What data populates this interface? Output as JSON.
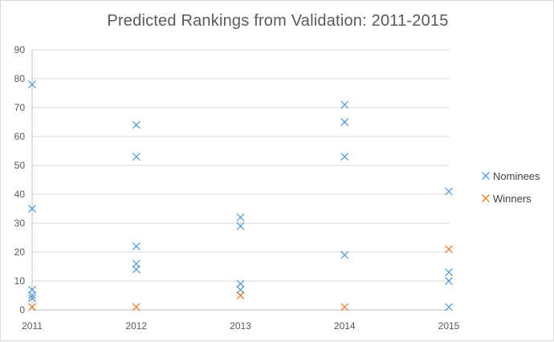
{
  "chart_data": {
    "type": "scatter",
    "title": "Predicted Rankings from Validation: 2011-2015",
    "xlabel": "",
    "ylabel": "",
    "x_ticks": [
      "2011",
      "2012",
      "2013",
      "2014",
      "2015"
    ],
    "y_ticks": [
      "0",
      "10",
      "20",
      "30",
      "40",
      "50",
      "60",
      "70",
      "80",
      "90"
    ],
    "xlim": [
      2011,
      2015
    ],
    "ylim": [
      0,
      90
    ],
    "grid": "horizontal",
    "legend_position": "right",
    "marker": "x",
    "series": [
      {
        "name": "Nominees",
        "color": "#5b9bd5",
        "points": [
          {
            "x": 2011,
            "y": 78
          },
          {
            "x": 2011,
            "y": 35
          },
          {
            "x": 2011,
            "y": 7
          },
          {
            "x": 2011,
            "y": 5
          },
          {
            "x": 2011,
            "y": 4
          },
          {
            "x": 2012,
            "y": 64
          },
          {
            "x": 2012,
            "y": 53
          },
          {
            "x": 2012,
            "y": 22
          },
          {
            "x": 2012,
            "y": 16
          },
          {
            "x": 2012,
            "y": 14
          },
          {
            "x": 2013,
            "y": 32
          },
          {
            "x": 2013,
            "y": 29
          },
          {
            "x": 2013,
            "y": 9
          },
          {
            "x": 2013,
            "y": 7
          },
          {
            "x": 2014,
            "y": 71
          },
          {
            "x": 2014,
            "y": 65
          },
          {
            "x": 2014,
            "y": 53
          },
          {
            "x": 2014,
            "y": 19
          },
          {
            "x": 2015,
            "y": 41
          },
          {
            "x": 2015,
            "y": 13
          },
          {
            "x": 2015,
            "y": 10
          },
          {
            "x": 2015,
            "y": 1
          }
        ]
      },
      {
        "name": "Winners",
        "color": "#ed7d31",
        "points": [
          {
            "x": 2011,
            "y": 1
          },
          {
            "x": 2012,
            "y": 1
          },
          {
            "x": 2013,
            "y": 5
          },
          {
            "x": 2014,
            "y": 1
          },
          {
            "x": 2015,
            "y": 21
          }
        ]
      }
    ]
  }
}
